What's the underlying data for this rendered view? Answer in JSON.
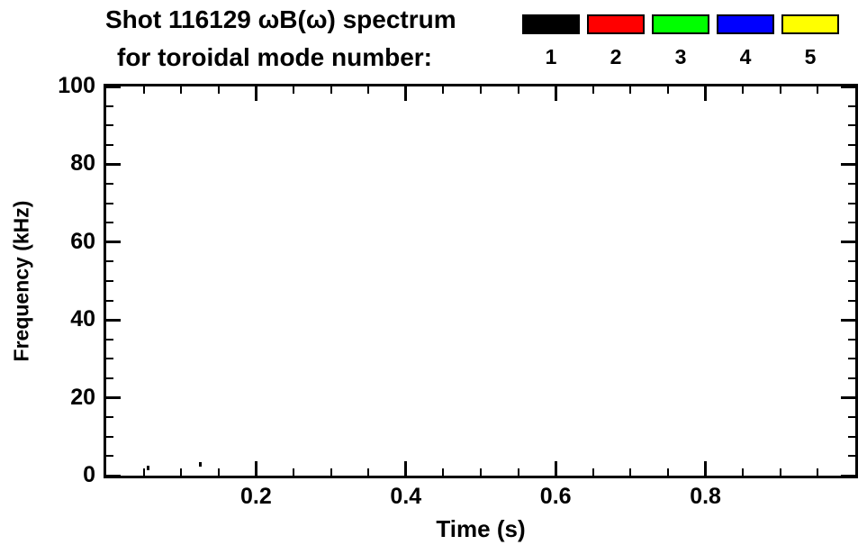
{
  "chart_data": {
    "type": "scatter",
    "title_line1": "Shot 116129 ωB(ω) spectrum",
    "title_line2": "for toroidal mode number:",
    "xlabel": "Time (s)",
    "ylabel": "Frequency (kHz)",
    "xlim": [
      0.0,
      1.0
    ],
    "ylim": [
      0,
      100
    ],
    "x_major_ticks": [
      0.2,
      0.4,
      0.6,
      0.8
    ],
    "x_major_tick_labels": [
      "0.2",
      "0.4",
      "0.6",
      "0.8"
    ],
    "x_minor_tick_interval": 0.05,
    "y_major_ticks": [
      0,
      20,
      40,
      60,
      80,
      100
    ],
    "y_major_tick_labels": [
      "0",
      "20",
      "40",
      "60",
      "80",
      "100"
    ],
    "y_minor_tick_interval": 5,
    "grid": false,
    "legend": {
      "position": "top-right",
      "entries": [
        {
          "label": "1",
          "color": "#000000"
        },
        {
          "label": "2",
          "color": "#ff0000"
        },
        {
          "label": "3",
          "color": "#00ff00"
        },
        {
          "label": "4",
          "color": "#0000ff"
        },
        {
          "label": "5",
          "color": "#ffff00"
        }
      ]
    },
    "series": [
      {
        "name": "mode-1",
        "color": "#000000",
        "points": [
          {
            "x": 0.055,
            "y": 2.0
          },
          {
            "x": 0.125,
            "y": 3.0
          }
        ]
      }
    ]
  }
}
